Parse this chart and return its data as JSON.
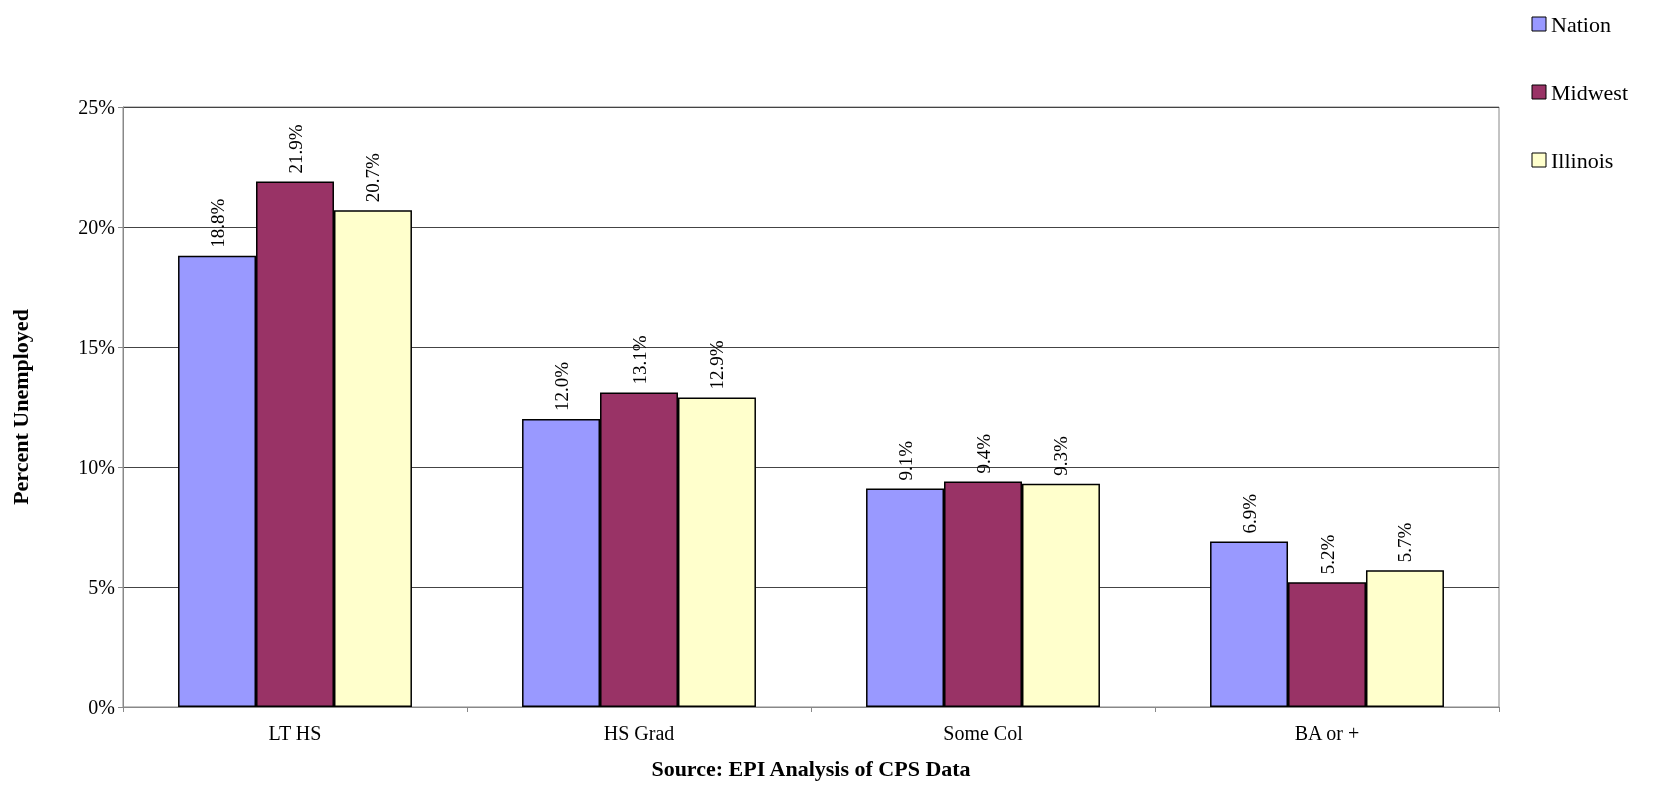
{
  "chart_data": {
    "type": "bar",
    "ylabel": "Percent Unemployed",
    "xlabel": "Source: EPI Analysis of CPS Data",
    "categories": [
      "LT HS",
      "HS Grad",
      "Some Col",
      "BA or +"
    ],
    "series": [
      {
        "name": "Nation",
        "color": "#9999ff",
        "values": [
          18.8,
          12.0,
          9.1,
          6.9
        ],
        "value_labels": [
          "18.8%",
          "12.0%",
          "9.1%",
          "6.9%"
        ]
      },
      {
        "name": "Midwest",
        "color": "#993366",
        "values": [
          21.9,
          13.1,
          9.4,
          5.2
        ],
        "value_labels": [
          "21.9%",
          "13.1%",
          "9.4%",
          "5.2%"
        ]
      },
      {
        "name": "Illinois",
        "color": "#ffffcc",
        "values": [
          20.7,
          12.9,
          9.3,
          5.7
        ],
        "value_labels": [
          "20.7%",
          "12.9%",
          "9.3%",
          "5.7%"
        ]
      }
    ],
    "ylim": [
      0,
      25
    ],
    "yticks": [
      {
        "value": 0,
        "label": "0%"
      },
      {
        "value": 5,
        "label": "5%"
      },
      {
        "value": 10,
        "label": "10%"
      },
      {
        "value": 15,
        "label": "15%"
      },
      {
        "value": 20,
        "label": "20%"
      },
      {
        "value": 25,
        "label": "25%"
      }
    ],
    "grid": "y",
    "legend": "top right"
  }
}
